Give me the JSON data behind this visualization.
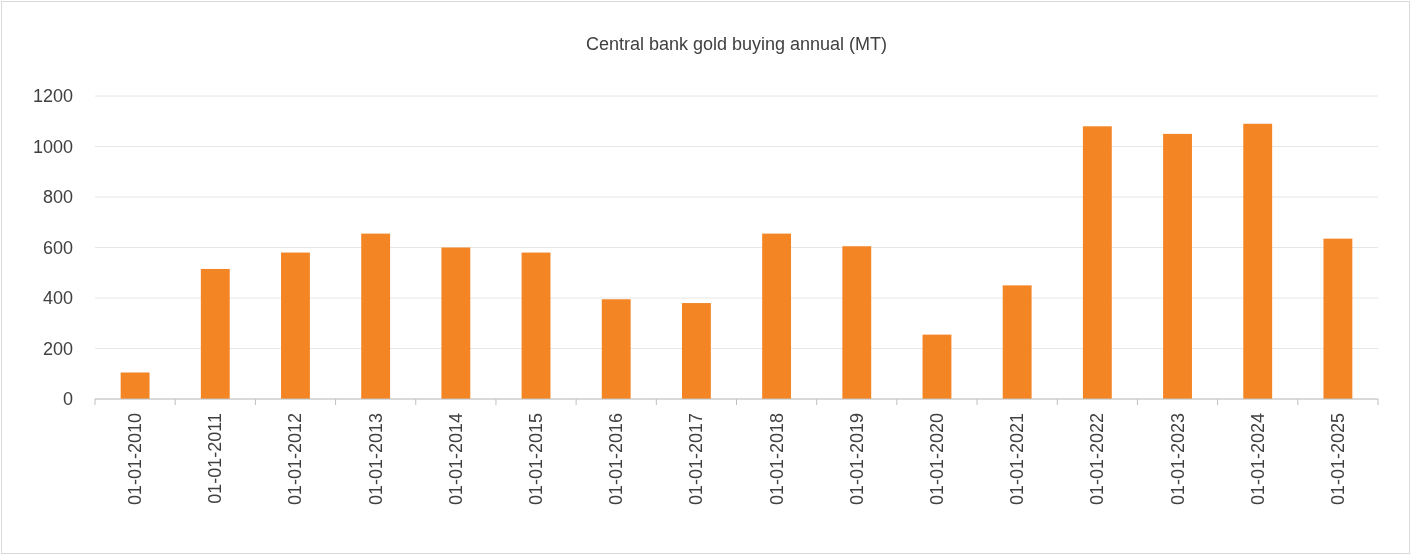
{
  "chart_data": {
    "type": "bar",
    "title": "Central bank gold buying annual (MT)",
    "categories": [
      "01-01-2010",
      "01-01-2011",
      "01-01-2012",
      "01-01-2013",
      "01-01-2014",
      "01-01-2015",
      "01-01-2016",
      "01-01-2017",
      "01-01-2018",
      "01-01-2019",
      "01-01-2020",
      "01-01-2021",
      "01-01-2022",
      "01-01-2023",
      "01-01-2024",
      "01-01-2025"
    ],
    "values": [
      105,
      515,
      580,
      655,
      600,
      580,
      395,
      380,
      655,
      605,
      255,
      450,
      1080,
      1050,
      1090,
      635
    ],
    "color": "#f48525",
    "ylim": [
      0,
      1200
    ],
    "yticks": [
      0,
      200,
      400,
      600,
      800,
      1000,
      1200
    ],
    "grid": "y"
  }
}
